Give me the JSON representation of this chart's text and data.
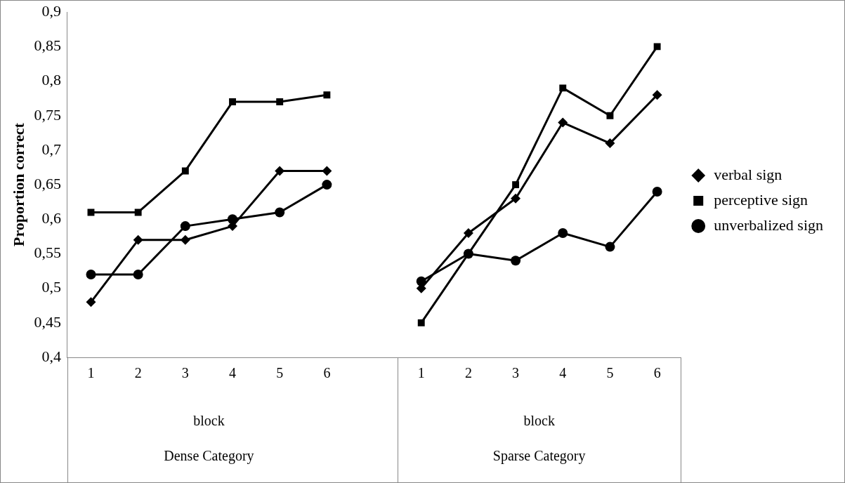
{
  "chart_data": {
    "type": "line",
    "ylabel": "Proportion correct",
    "categories": [
      "1",
      "2",
      "3",
      "4",
      "5",
      "6",
      null,
      "1",
      "2",
      "3",
      "4",
      "5",
      "6"
    ],
    "series": [
      {
        "name": "verbal sign",
        "color": "#000000",
        "marker": "diamond",
        "values": [
          0.48,
          0.57,
          0.57,
          0.59,
          0.67,
          0.67,
          null,
          0.5,
          0.58,
          0.63,
          0.74,
          0.71,
          0.78
        ]
      },
      {
        "name": "perceptive sign",
        "color": "#000000",
        "marker": "square",
        "values": [
          0.61,
          0.61,
          0.67,
          0.77,
          0.77,
          0.78,
          null,
          0.45,
          0.55,
          0.65,
          0.79,
          0.75,
          0.85
        ]
      },
      {
        "name": "unverbalized sign",
        "color": "#000000",
        "marker": "circle",
        "values": [
          0.52,
          0.52,
          0.59,
          0.6,
          0.61,
          0.65,
          null,
          0.51,
          0.55,
          0.54,
          0.58,
          0.56,
          0.64
        ]
      }
    ],
    "ylim": [
      0.4,
      0.9
    ],
    "yticks": [
      {
        "value": 0.4,
        "label": "0,4"
      },
      {
        "value": 0.45,
        "label": "0,45"
      },
      {
        "value": 0.5,
        "label": "0,5"
      },
      {
        "value": 0.55,
        "label": "0,55"
      },
      {
        "value": 0.6,
        "label": "0,6"
      },
      {
        "value": 0.65,
        "label": "0,65"
      },
      {
        "value": 0.7,
        "label": "0,7"
      },
      {
        "value": 0.75,
        "label": "0,75"
      },
      {
        "value": 0.8,
        "label": "0,8"
      },
      {
        "value": 0.85,
        "label": "0,85"
      },
      {
        "value": 0.9,
        "label": "0,9"
      }
    ],
    "annotations": [
      "block",
      "Dense Category",
      "block",
      "Sparse Category"
    ],
    "grid": false,
    "legend": "right",
    "line_style": "solid"
  }
}
